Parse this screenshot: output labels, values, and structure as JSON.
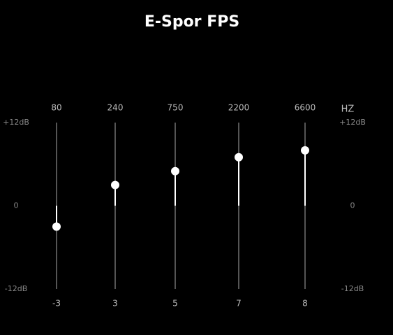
{
  "chart_data": {
    "type": "equalizer",
    "title": "E-Spor FPS",
    "x_label": "HZ",
    "categories": [
      "80",
      "240",
      "750",
      "2200",
      "6600"
    ],
    "values": [
      -3,
      3,
      5,
      7,
      8
    ],
    "ylim": [
      -12,
      12
    ],
    "yticks": [
      {
        "value": 12,
        "label": "+12dB"
      },
      0,
      {
        "value": -12,
        "label": "-12dB"
      }
    ],
    "color": "#ffffff"
  }
}
